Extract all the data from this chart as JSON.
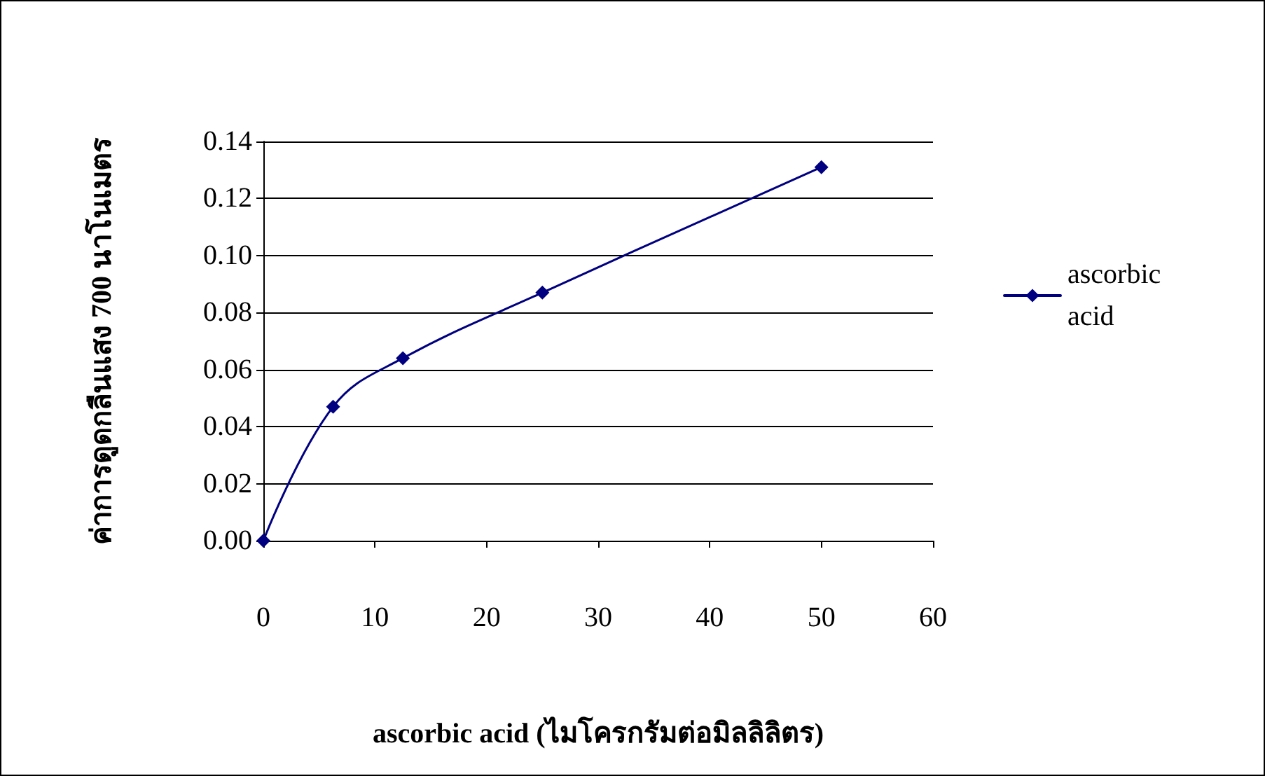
{
  "chart_data": {
    "type": "line",
    "xlabel": "ascorbic acid (ไมโครกรัมต่อมิลลิลิตร)",
    "ylabel": "ค่าการดูดกลืนแสง 700 นาโนเมตร",
    "x": [
      0,
      6.25,
      12.5,
      25,
      50
    ],
    "series": [
      {
        "name": "ascorbic acid",
        "color": "#000080",
        "values": [
          0,
          0.047,
          0.064,
          0.087,
          0.131
        ]
      }
    ],
    "xlim": [
      0,
      60
    ],
    "xticks": [
      0,
      10,
      20,
      30,
      40,
      50,
      60
    ],
    "ylim": [
      0,
      0.14
    ],
    "yticks": [
      {
        "value": 0,
        "label": "0.00"
      },
      {
        "value": 0.02,
        "label": "0.02"
      },
      {
        "value": 0.04,
        "label": "0.04"
      },
      {
        "value": 0.06,
        "label": "0.06"
      },
      {
        "value": 0.08,
        "label": "0.08"
      },
      {
        "value": 0.1,
        "label": "0.10"
      },
      {
        "value": 0.12,
        "label": "0.12"
      },
      {
        "value": 0.14,
        "label": "0.14"
      }
    ],
    "grid": "y",
    "legend": "right",
    "marker": "diamond",
    "line_style": "solid"
  }
}
